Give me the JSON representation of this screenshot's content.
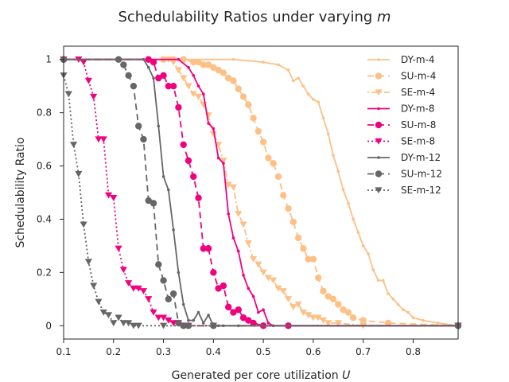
{
  "chart_data": {
    "type": "line",
    "title": "Schedulability Ratios under varying ",
    "title_var": "m",
    "xlabel": "Generated per core utilization ",
    "xlabel_var": "U",
    "ylabel": "Schedulability Ratio",
    "xlim": [
      0.1,
      0.89
    ],
    "ylim": [
      -0.05,
      1.05
    ],
    "xticks": [
      0.1,
      0.2,
      0.3,
      0.4,
      0.5,
      0.6,
      0.7,
      0.8
    ],
    "xtick_labels": [
      "0.1",
      "0.2",
      "0.3",
      "0.4",
      "0.5",
      "0.6",
      "0.7",
      "0.8"
    ],
    "yticks": [
      0,
      0.2,
      0.4,
      0.6,
      0.8,
      1
    ],
    "ytick_labels": [
      "0",
      "0.2",
      "0.4",
      "0.6",
      "0.8",
      "1"
    ],
    "legend_position": "top-right",
    "series": [
      {
        "name": "DY-m-4",
        "color": "#fdc086",
        "dash": "solid",
        "marker": "dot",
        "x": [
          0.1,
          0.3,
          0.44,
          0.5,
          0.53,
          0.55,
          0.56,
          0.57,
          0.58,
          0.59,
          0.6,
          0.61,
          0.62,
          0.63,
          0.64,
          0.65,
          0.66,
          0.67,
          0.68,
          0.69,
          0.7,
          0.71,
          0.72,
          0.73,
          0.74,
          0.75,
          0.76,
          0.77,
          0.78,
          0.79,
          0.8,
          0.82,
          0.85,
          0.89
        ],
        "y": [
          1.0,
          1.0,
          1.0,
          0.99,
          0.98,
          0.96,
          0.92,
          0.93,
          0.9,
          0.87,
          0.85,
          0.84,
          0.78,
          0.72,
          0.64,
          0.58,
          0.51,
          0.46,
          0.4,
          0.35,
          0.3,
          0.27,
          0.21,
          0.17,
          0.17,
          0.12,
          0.1,
          0.08,
          0.06,
          0.05,
          0.03,
          0.02,
          0.01,
          0.0
        ]
      },
      {
        "name": "SU-m-4",
        "color": "#fdc086",
        "dash": "8,5",
        "marker": "circle",
        "x": [
          0.1,
          0.3,
          0.32,
          0.34,
          0.36,
          0.37,
          0.38,
          0.39,
          0.4,
          0.41,
          0.42,
          0.43,
          0.44,
          0.45,
          0.46,
          0.47,
          0.48,
          0.49,
          0.5,
          0.51,
          0.52,
          0.53,
          0.54,
          0.55,
          0.56,
          0.57,
          0.58,
          0.59,
          0.6,
          0.61,
          0.62,
          0.63,
          0.64,
          0.65,
          0.66,
          0.67,
          0.68,
          0.7,
          0.75,
          0.89
        ],
        "y": [
          1.0,
          1.0,
          1.0,
          1.0,
          0.99,
          0.99,
          0.98,
          0.98,
          0.97,
          0.96,
          0.95,
          0.93,
          0.92,
          0.89,
          0.86,
          0.83,
          0.78,
          0.73,
          0.69,
          0.63,
          0.61,
          0.56,
          0.49,
          0.44,
          0.39,
          0.33,
          0.29,
          0.25,
          0.25,
          0.18,
          0.13,
          0.11,
          0.1,
          0.08,
          0.06,
          0.05,
          0.03,
          0.02,
          0.01,
          0.0
        ]
      },
      {
        "name": "SE-m-4",
        "color": "#fdc086",
        "dash": "2,3,8,3",
        "marker": "triangle",
        "x": [
          0.1,
          0.31,
          0.32,
          0.33,
          0.34,
          0.35,
          0.36,
          0.37,
          0.38,
          0.39,
          0.4,
          0.41,
          0.42,
          0.43,
          0.44,
          0.45,
          0.46,
          0.47,
          0.48,
          0.49,
          0.5,
          0.51,
          0.52,
          0.53,
          0.54,
          0.55,
          0.56,
          0.57,
          0.58,
          0.59,
          0.6,
          0.61,
          0.62,
          0.63,
          0.65,
          0.7,
          0.89
        ],
        "y": [
          1.0,
          1.0,
          0.99,
          0.96,
          0.93,
          0.9,
          0.87,
          0.86,
          0.83,
          0.79,
          0.72,
          0.68,
          0.62,
          0.53,
          0.52,
          0.42,
          0.38,
          0.31,
          0.25,
          0.23,
          0.2,
          0.18,
          0.17,
          0.14,
          0.13,
          0.1,
          0.07,
          0.08,
          0.05,
          0.04,
          0.03,
          0.03,
          0.02,
          0.01,
          0.01,
          0.0,
          0.0
        ]
      },
      {
        "name": "DY-m-8",
        "color": "#f0027f",
        "dash": "solid",
        "marker": "dot",
        "x": [
          0.1,
          0.33,
          0.35,
          0.36,
          0.37,
          0.38,
          0.39,
          0.4,
          0.41,
          0.42,
          0.43,
          0.44,
          0.45,
          0.46,
          0.47,
          0.48,
          0.49,
          0.5,
          0.51,
          0.52,
          0.55,
          0.89
        ],
        "y": [
          1.0,
          1.0,
          0.97,
          0.94,
          0.9,
          0.87,
          0.76,
          0.74,
          0.63,
          0.61,
          0.42,
          0.33,
          0.28,
          0.19,
          0.14,
          0.11,
          0.05,
          0.06,
          0.01,
          0.0,
          0.0,
          0.0
        ]
      },
      {
        "name": "SU-m-8",
        "color": "#f0027f",
        "dash": "8,5",
        "marker": "circle",
        "x": [
          0.1,
          0.27,
          0.28,
          0.29,
          0.3,
          0.31,
          0.32,
          0.33,
          0.34,
          0.35,
          0.36,
          0.37,
          0.38,
          0.39,
          0.4,
          0.41,
          0.42,
          0.43,
          0.44,
          0.45,
          0.46,
          0.47,
          0.48,
          0.5,
          0.55,
          0.89
        ],
        "y": [
          1.0,
          1.0,
          0.99,
          0.93,
          0.94,
          0.9,
          0.9,
          0.82,
          0.68,
          0.62,
          0.56,
          0.48,
          0.29,
          0.29,
          0.2,
          0.14,
          0.15,
          0.07,
          0.05,
          0.06,
          0.03,
          0.02,
          0.01,
          0.0,
          0.0,
          0.0
        ]
      },
      {
        "name": "SE-m-8",
        "color": "#f0027f",
        "dash": "2,3",
        "marker": "triangle",
        "x": [
          0.1,
          0.13,
          0.14,
          0.15,
          0.16,
          0.17,
          0.18,
          0.19,
          0.2,
          0.21,
          0.22,
          0.23,
          0.24,
          0.25,
          0.26,
          0.27,
          0.28,
          0.29,
          0.3,
          0.31,
          0.32,
          0.33,
          0.35,
          0.4,
          0.89
        ],
        "y": [
          1.0,
          1.0,
          0.99,
          0.92,
          0.86,
          0.7,
          0.7,
          0.49,
          0.48,
          0.29,
          0.21,
          0.16,
          0.14,
          0.14,
          0.13,
          0.1,
          0.05,
          0.03,
          0.03,
          0.02,
          0.01,
          0.01,
          0.0,
          0.0,
          0.0
        ]
      },
      {
        "name": "DY-m-12",
        "color": "#666666",
        "dash": "solid",
        "marker": "dot",
        "x": [
          0.1,
          0.26,
          0.27,
          0.28,
          0.29,
          0.3,
          0.31,
          0.32,
          0.33,
          0.34,
          0.35,
          0.36,
          0.37,
          0.38,
          0.39,
          0.4,
          0.41,
          0.42,
          0.45,
          0.89
        ],
        "y": [
          1.0,
          1.0,
          0.97,
          0.93,
          0.75,
          0.56,
          0.51,
          0.36,
          0.2,
          0.08,
          0.02,
          0.02,
          0.05,
          0.01,
          0.04,
          0.0,
          0.0,
          0.0,
          0.0,
          0.0
        ]
      },
      {
        "name": "SU-m-12",
        "color": "#666666",
        "dash": "8,5",
        "marker": "circle",
        "x": [
          0.1,
          0.21,
          0.22,
          0.23,
          0.24,
          0.25,
          0.26,
          0.27,
          0.28,
          0.29,
          0.3,
          0.31,
          0.32,
          0.33,
          0.34,
          0.35,
          0.4,
          0.89
        ],
        "y": [
          1.0,
          1.0,
          0.98,
          0.94,
          0.9,
          0.75,
          0.7,
          0.47,
          0.46,
          0.23,
          0.17,
          0.1,
          0.12,
          0.01,
          0.0,
          0.0,
          0.0,
          0.0
        ]
      },
      {
        "name": "SE-m-12",
        "color": "#666666",
        "dash": "2,3",
        "marker": "triangle",
        "x": [
          0.1,
          0.11,
          0.12,
          0.13,
          0.14,
          0.15,
          0.16,
          0.17,
          0.18,
          0.19,
          0.2,
          0.21,
          0.22,
          0.23,
          0.24,
          0.25,
          0.3,
          0.4,
          0.89
        ],
        "y": [
          0.94,
          0.87,
          0.68,
          0.57,
          0.38,
          0.24,
          0.15,
          0.09,
          0.05,
          0.04,
          0.01,
          0.03,
          0.01,
          0.01,
          0.0,
          0.0,
          0.0,
          0.0,
          0.0
        ]
      }
    ]
  }
}
